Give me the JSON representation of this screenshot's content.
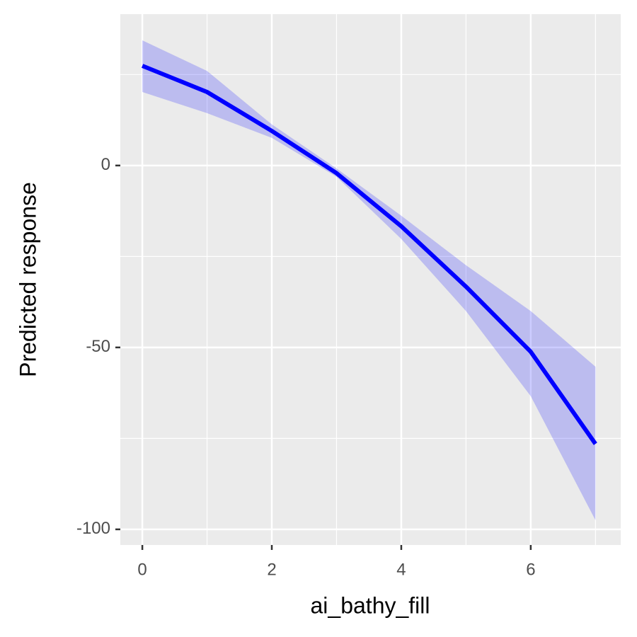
{
  "chart_data": {
    "type": "line",
    "x_label": "ai_bathy_fill",
    "y_label": "Predicted response",
    "x": [
      0,
      1,
      2,
      3,
      4,
      5,
      6,
      7
    ],
    "series": [
      {
        "color": "#0000ff",
        "values": [
          27.4,
          20.2,
          9.5,
          -2.1,
          -16.7,
          -33.3,
          -51.2,
          -76.5
        ]
      }
    ],
    "ribbon": {
      "color": "#0000ff",
      "opacity": 0.2,
      "upper": [
        34.4,
        26,
        11.3,
        -0.8,
        -13.8,
        -27.4,
        -40,
        -55.3
      ],
      "lower": [
        20.2,
        14.4,
        7.6,
        -3.1,
        -20.2,
        -40,
        -63.4,
        -97.5
      ]
    },
    "xlim": [
      -0.34,
      7.39
    ],
    "ylim": [
      -104.3,
      41.6
    ],
    "xticks": [
      0,
      2,
      4,
      6
    ],
    "yticks": [
      0,
      -50,
      -100
    ],
    "x_minor_grid": [
      1,
      3,
      5,
      7
    ],
    "y_minor_grid": [
      25,
      -25,
      -75
    ],
    "grid": true
  }
}
